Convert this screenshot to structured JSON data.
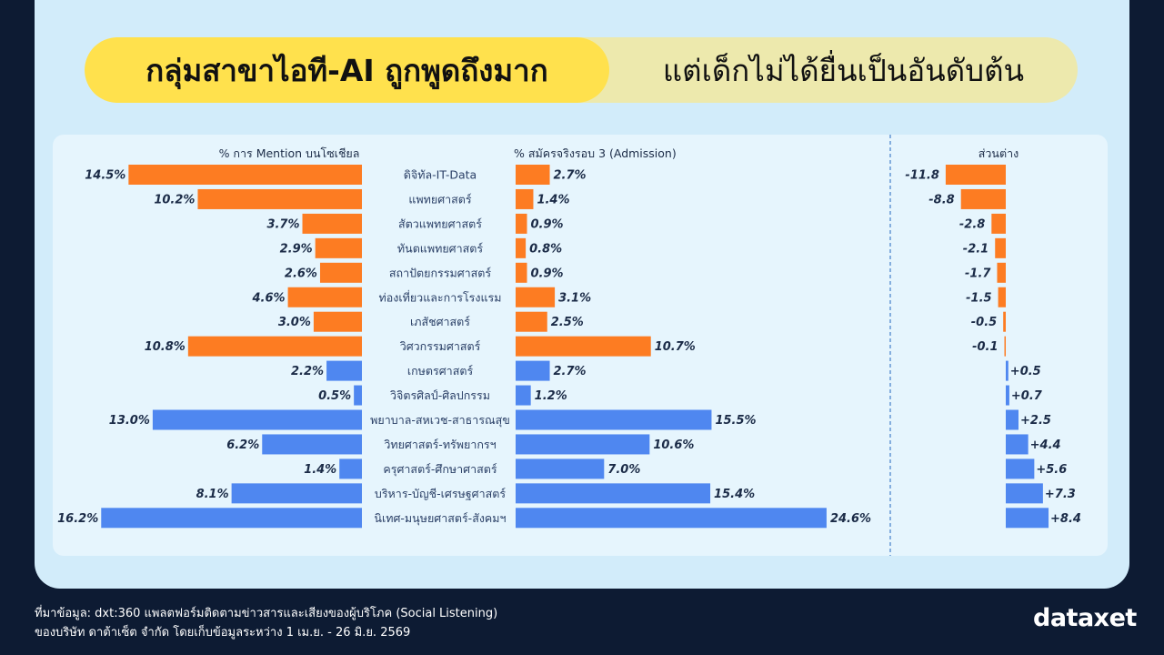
{
  "title": {
    "highlight": "กลุ่มสาขาไอที-AI ถูกพูดถึงมาก",
    "rest": "แต่เด็กไม่ได้ยื่นเป็นอันดับต้น"
  },
  "colors": {
    "negative_gap": "#fd7c22",
    "positive_gap": "#4f87f0",
    "background": "#0d1b33",
    "panel": "#d2ecfa",
    "highlight": "#ffe14d"
  },
  "chart_data": {
    "type": "bar",
    "panels": [
      "% การ Mention บนโซเชียล",
      "% สมัครจริงรอบ 3 (Admission)",
      "ส่วนต่าง"
    ],
    "categories": [
      "ดิจิทัล-IT-Data",
      "แพทยศาสตร์",
      "สัตวแพทยศาสตร์",
      "ทันตแพทยศาสตร์",
      "สถาปัตยกรรมศาสตร์",
      "ท่องเที่ยวและการโรงแรม",
      "เภสัชศาสตร์",
      "วิศวกรรมศาสตร์",
      "เกษตรศาสตร์",
      "วิจิตรศิลป์-ศิลปกรรม",
      "พยาบาล-สหเวช-สาธารณสุข",
      "วิทยศาสตร์-ทรัพยากรฯ",
      "ครุศาสตร์-ศึกษาศาสตร์",
      "บริหาร-บัญชี-เศรษฐศาสตร์",
      "นิเทศ-มนุษยศาสตร์-สังคมฯ"
    ],
    "series": [
      {
        "name": "% การ Mention บนโซเชียล",
        "values": [
          14.5,
          10.2,
          3.7,
          2.9,
          2.6,
          4.6,
          3.0,
          10.8,
          2.2,
          0.5,
          13.0,
          6.2,
          1.4,
          8.1,
          16.2
        ],
        "labels": [
          "14.5%",
          "10.2%",
          "3.7%",
          "2.9%",
          "2.6%",
          "4.6%",
          "3.0%",
          "10.8%",
          "2.2%",
          "0.5%",
          "13.0%",
          "6.2%",
          "1.4%",
          "8.1%",
          "16.2%"
        ]
      },
      {
        "name": "% สมัครจริงรอบ 3 (Admission)",
        "values": [
          2.7,
          1.4,
          0.9,
          0.8,
          0.9,
          3.1,
          2.5,
          10.7,
          2.7,
          1.2,
          15.5,
          10.6,
          7.0,
          15.4,
          24.6
        ],
        "labels": [
          "2.7%",
          "1.4%",
          "0.9%",
          "0.8%",
          "0.9%",
          "3.1%",
          "2.5%",
          "10.7%",
          "2.7%",
          "1.2%",
          "15.5%",
          "10.6%",
          "7.0%",
          "15.4%",
          "24.6%"
        ]
      },
      {
        "name": "ส่วนต่าง",
        "values": [
          -11.8,
          -8.8,
          -2.8,
          -2.1,
          -1.7,
          -1.5,
          -0.5,
          -0.1,
          0.5,
          0.7,
          2.5,
          4.4,
          5.6,
          7.3,
          8.4
        ],
        "labels": [
          "-11.8",
          "-8.8",
          "-2.8",
          "-2.1",
          "-1.7",
          "-1.5",
          "-0.5",
          "-0.1",
          "+0.5",
          "+0.7",
          "+2.5",
          "+4.4",
          "+5.6",
          "+7.3",
          "+8.4"
        ]
      }
    ]
  },
  "source": {
    "line1": "ที่มาข้อมูล: dxt:360 แพลตฟอร์มติดตามข่าวสารและเสียงของผู้บริโภค (Social Listening)",
    "line2": "ของบริษัท ดาต้าเซ็ต จำกัด โดยเก็บข้อมูลระหว่าง 1 เม.ย. - 26 มิ.ย. 2569"
  },
  "logo": "dataxet"
}
